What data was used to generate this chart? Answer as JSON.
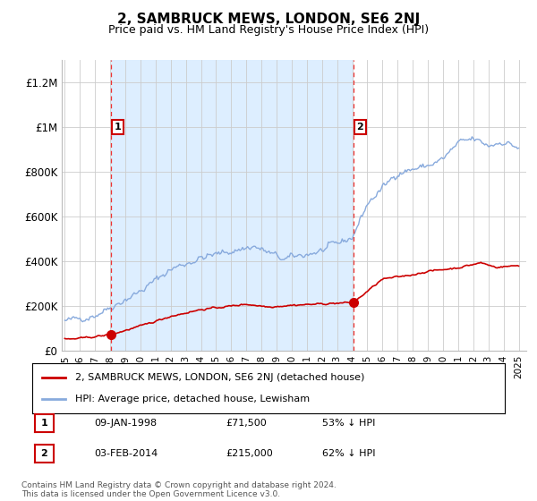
{
  "title": "2, SAMBRUCK MEWS, LONDON, SE6 2NJ",
  "subtitle": "Price paid vs. HM Land Registry's House Price Index (HPI)",
  "ylim": [
    0,
    1300000
  ],
  "yticks": [
    0,
    200000,
    400000,
    600000,
    800000,
    1000000,
    1200000
  ],
  "ytick_labels": [
    "£0",
    "£200K",
    "£400K",
    "£600K",
    "£800K",
    "£1M",
    "£1.2M"
  ],
  "legend_entries": [
    "2, SAMBRUCK MEWS, LONDON, SE6 2NJ (detached house)",
    "HPI: Average price, detached house, Lewisham"
  ],
  "sale1_year": 1998.05,
  "sale1_price": 71500,
  "sale1_label": "1",
  "sale1_date": "09-JAN-1998",
  "sale1_pct": "53% ↓ HPI",
  "sale2_year": 2014.08,
  "sale2_price": 215000,
  "sale2_label": "2",
  "sale2_date": "03-FEB-2014",
  "sale2_pct": "62% ↓ HPI",
  "red_line_color": "#cc0000",
  "blue_line_color": "#88aadd",
  "vline_color": "#ee3333",
  "shade_color": "#ddeeff",
  "marker_box_color": "#cc0000",
  "footnote": "Contains HM Land Registry data © Crown copyright and database right 2024.\nThis data is licensed under the Open Government Licence v3.0.",
  "background_color": "#ffffff",
  "grid_color": "#cccccc"
}
